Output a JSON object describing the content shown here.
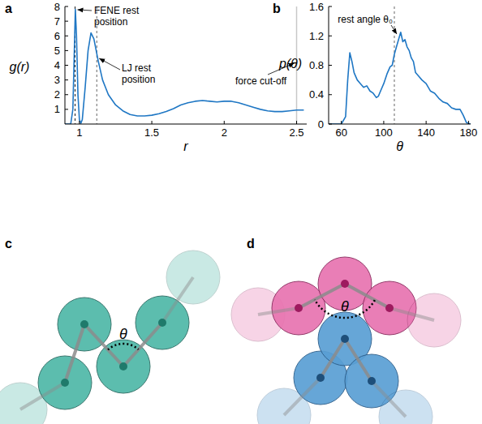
{
  "chart_data": [
    {
      "type": "line",
      "title": "a",
      "x_label": "r",
      "y_label": "g(r)",
      "x": [
        0.9,
        0.94,
        0.955,
        0.965,
        0.972,
        0.98,
        0.99,
        1.0,
        1.01,
        1.02,
        1.04,
        1.06,
        1.08,
        1.1,
        1.13,
        1.16,
        1.2,
        1.25,
        1.3,
        1.35,
        1.4,
        1.45,
        1.5,
        1.55,
        1.6,
        1.65,
        1.7,
        1.75,
        1.8,
        1.85,
        1.9,
        1.95,
        2.0,
        2.05,
        2.1,
        2.15,
        2.2,
        2.25,
        2.3,
        2.35,
        2.4,
        2.45,
        2.5,
        2.55
      ],
      "series": [
        {
          "color": "#1f77c4",
          "values": [
            0,
            0,
            1,
            5,
            7.8,
            6,
            2,
            0.3,
            0.05,
            0.3,
            2.5,
            5,
            6.2,
            5.8,
            4.3,
            3,
            2,
            1.3,
            0.9,
            0.65,
            0.55,
            0.55,
            0.6,
            0.7,
            0.85,
            1.05,
            1.3,
            1.45,
            1.55,
            1.6,
            1.55,
            1.5,
            1.55,
            1.55,
            1.45,
            1.3,
            1.15,
            1.0,
            0.9,
            0.85,
            0.85,
            0.9,
            0.95,
            0.95
          ]
        }
      ],
      "xlim": [
        0.9,
        2.57
      ],
      "ylim": [
        0,
        8
      ],
      "xticks": [
        1,
        1.5,
        2,
        2.5
      ],
      "yticks": [
        1,
        2,
        3,
        4,
        5,
        6,
        7,
        8
      ],
      "annotations": [
        {
          "text": "FENE rest position",
          "x": 0.97,
          "line_style": "dashed",
          "color": "#000000"
        },
        {
          "text": "LJ rest position",
          "x": 1.12,
          "line_style": "dashed",
          "color": "#555555"
        },
        {
          "text": "force cut-off",
          "x": 2.5,
          "line_style": "solid",
          "color": "#c8c8c8"
        }
      ]
    },
    {
      "type": "line",
      "title": "b",
      "x_label": "θ",
      "y_label": "p(θ)",
      "x": [
        48,
        60,
        64,
        66,
        68,
        70,
        72,
        75,
        78,
        81,
        84,
        87,
        90,
        93,
        95,
        97,
        100,
        103,
        106,
        108,
        110,
        112,
        114,
        116,
        118,
        120,
        122,
        124,
        126,
        128,
        130,
        133,
        136,
        140,
        144,
        148,
        152,
        156,
        160,
        164,
        168,
        172,
        175,
        178,
        182
      ],
      "series": [
        {
          "color": "#1f77c4",
          "values": [
            0,
            0,
            0.1,
            0.6,
            0.97,
            0.85,
            0.7,
            0.6,
            0.55,
            0.5,
            0.52,
            0.45,
            0.42,
            0.36,
            0.38,
            0.45,
            0.55,
            0.68,
            0.78,
            0.8,
            0.95,
            1.05,
            1.15,
            1.25,
            1.12,
            1.15,
            1.05,
            1.0,
            0.9,
            0.85,
            0.7,
            0.65,
            0.6,
            0.55,
            0.45,
            0.42,
            0.35,
            0.3,
            0.28,
            0.22,
            0.2,
            0.2,
            0.12,
            0.02,
            0
          ]
        }
      ],
      "xlim": [
        48,
        182
      ],
      "ylim": [
        0,
        1.6
      ],
      "xticks": [
        60,
        100,
        140,
        180
      ],
      "yticks": [
        0,
        0.4,
        0.8,
        1.2,
        1.6
      ],
      "annotations": [
        {
          "text": "rest angle θ₀",
          "x": 110,
          "line_style": "dashed",
          "color": "#555555"
        }
      ]
    }
  ],
  "diagrams": [
    {
      "label": "c",
      "angle_label": "θ"
    },
    {
      "label": "d",
      "angle_label": "θ"
    }
  ]
}
